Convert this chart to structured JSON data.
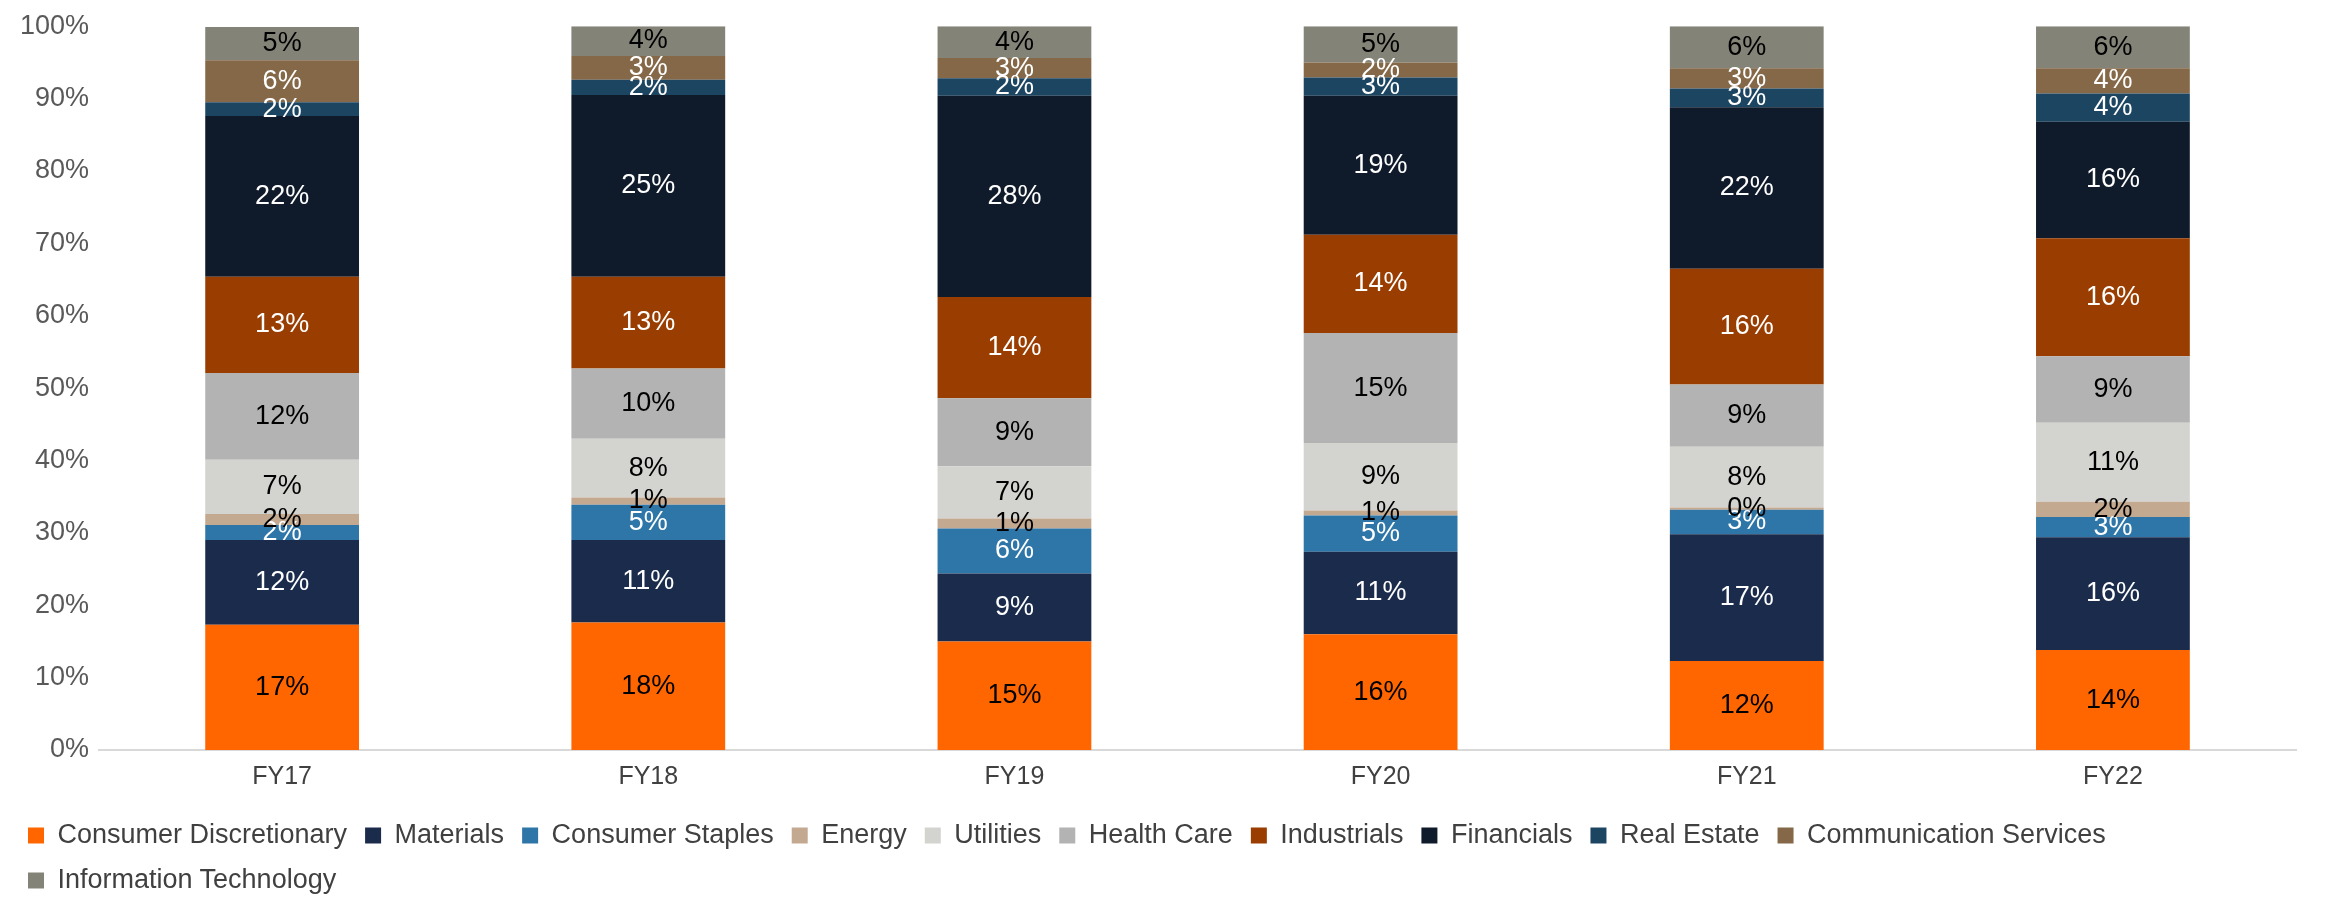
{
  "chart_data": {
    "type": "bar",
    "stacked": true,
    "categories": [
      "FY17",
      "FY18",
      "FY19",
      "FY20",
      "FY21",
      "FY22"
    ],
    "ylim": [
      0,
      100
    ],
    "yticks": [
      {
        "value": 0,
        "label": "0%"
      },
      {
        "value": 10,
        "label": "10%"
      },
      {
        "value": 20,
        "label": "20%"
      },
      {
        "value": 30,
        "label": "30%"
      },
      {
        "value": 40,
        "label": "40%"
      },
      {
        "value": 50,
        "label": "50%"
      },
      {
        "value": 60,
        "label": "60%"
      },
      {
        "value": 70,
        "label": "70%"
      },
      {
        "value": 80,
        "label": "80%"
      },
      {
        "value": 90,
        "label": "90%"
      },
      {
        "value": 100,
        "label": "100%"
      }
    ],
    "grid": false,
    "legend": "bottom",
    "series": [
      {
        "name": "Consumer Discretionary",
        "color": "#ff6600",
        "values": [
          17.3,
          17.6,
          15.0,
          16.0,
          12.3,
          13.8
        ],
        "value_labels": [
          "17%",
          "18%",
          "15%",
          "16%",
          "12%",
          "14%"
        ]
      },
      {
        "name": "Materials",
        "color": "#1a2b4c",
        "values": [
          11.7,
          11.4,
          9.4,
          11.4,
          17.5,
          15.6
        ],
        "value_labels": [
          "12%",
          "11%",
          "9%",
          "11%",
          "17%",
          "16%"
        ]
      },
      {
        "name": "Consumer Staples",
        "color": "#2e75a8",
        "values": [
          2.1,
          4.9,
          6.2,
          5.0,
          3.4,
          2.8
        ],
        "value_labels": [
          "2%",
          "5%",
          "6%",
          "5%",
          "3%",
          "3%"
        ]
      },
      {
        "name": "Energy",
        "color": "#c4a991",
        "values": [
          1.5,
          1.0,
          1.4,
          0.7,
          0.3,
          2.1
        ],
        "value_labels": [
          "2%",
          "1%",
          "1%",
          "1%",
          "0%",
          "2%"
        ]
      },
      {
        "name": "Utilities",
        "color": "#d3d3cf",
        "values": [
          7.5,
          8.1,
          7.2,
          9.3,
          8.4,
          10.9
        ],
        "value_labels": [
          "7%",
          "8%",
          "7%",
          "9%",
          "8%",
          "11%"
        ]
      },
      {
        "name": "Health Care",
        "color": "#b3b3b3",
        "values": [
          12.0,
          9.7,
          9.4,
          15.2,
          8.6,
          9.2
        ],
        "value_labels": [
          "12%",
          "10%",
          "9%",
          "15%",
          "9%",
          "9%"
        ]
      },
      {
        "name": "Industrials",
        "color": "#993d00",
        "values": [
          13.3,
          12.7,
          14.0,
          13.6,
          16.0,
          16.3
        ],
        "value_labels": [
          "13%",
          "13%",
          "14%",
          "14%",
          "16%",
          "16%"
        ]
      },
      {
        "name": "Financials",
        "color": "#0f1a2b",
        "values": [
          22.2,
          25.1,
          27.8,
          19.2,
          22.3,
          16.1
        ],
        "value_labels": [
          "22%",
          "25%",
          "28%",
          "19%",
          "22%",
          "16%"
        ]
      },
      {
        "name": "Real Estate",
        "color": "#1c4562",
        "values": [
          1.9,
          2.1,
          2.4,
          2.5,
          2.6,
          3.9
        ],
        "value_labels": [
          "2%",
          "2%",
          "2%",
          "3%",
          "3%",
          "4%"
        ]
      },
      {
        "name": "Communication Services",
        "color": "#846847",
        "values": [
          5.8,
          3.3,
          2.8,
          2.1,
          2.8,
          3.5
        ],
        "value_labels": [
          "6%",
          "3%",
          "3%",
          "2%",
          "3%",
          "4%"
        ]
      },
      {
        "name": "Information Technology",
        "color": "#848378",
        "values": [
          4.6,
          4.1,
          4.4,
          5.0,
          5.8,
          5.8
        ],
        "value_labels": [
          "5%",
          "4%",
          "4%",
          "5%",
          "6%",
          "6%"
        ]
      }
    ]
  }
}
